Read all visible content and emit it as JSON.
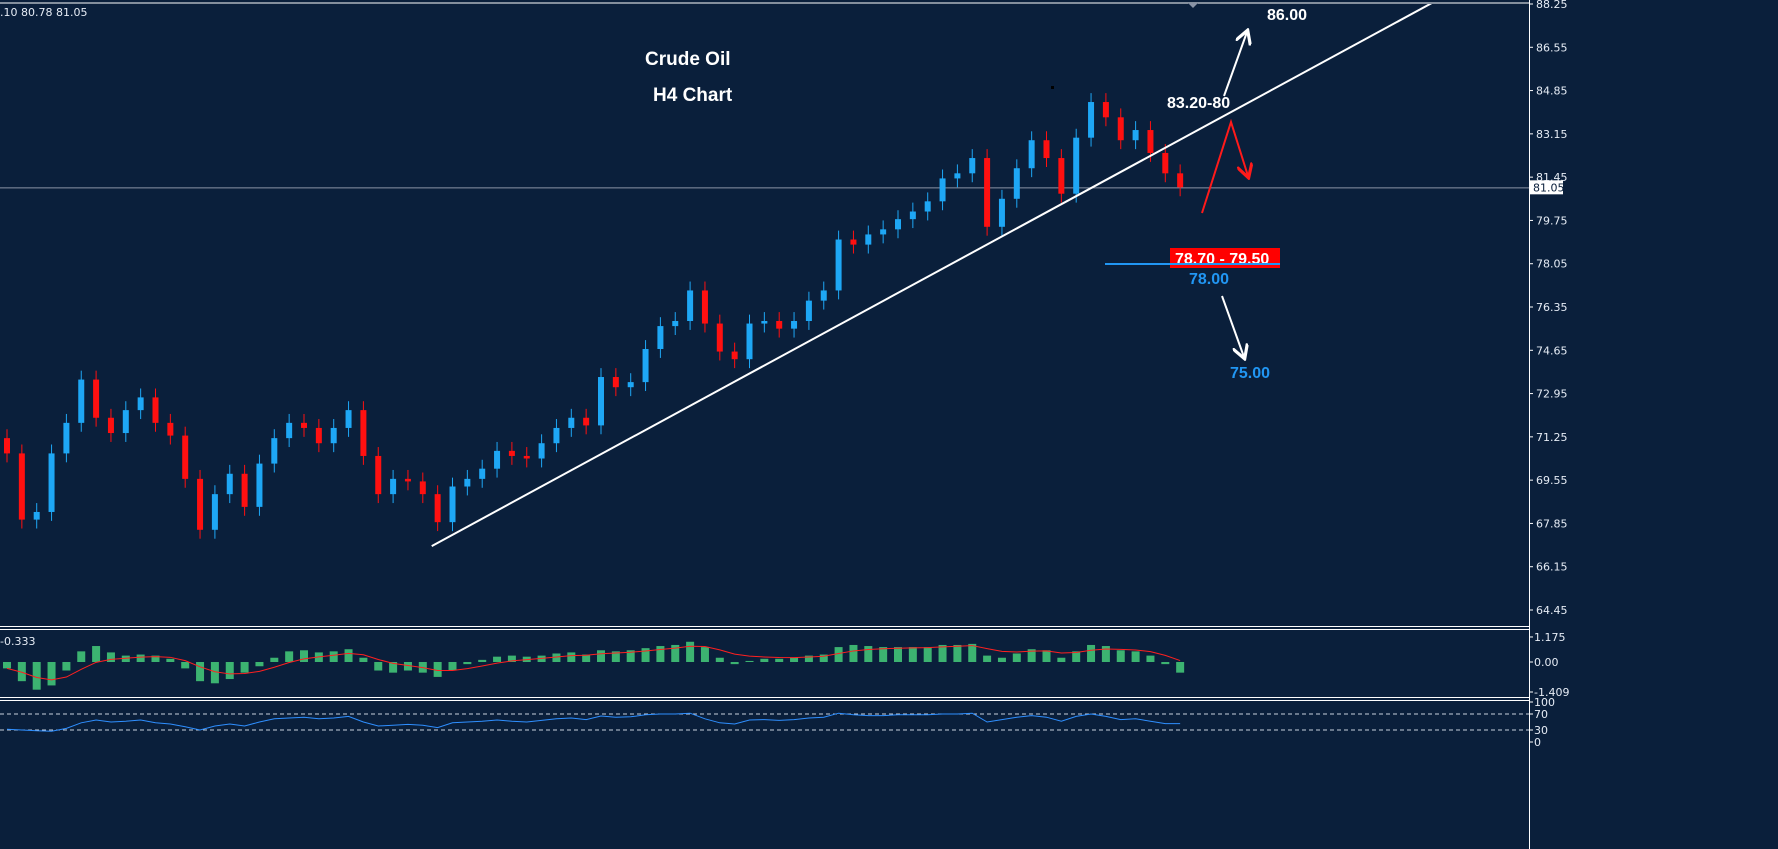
{
  "header": {
    "ohlc_readout": ".10 80.78 81.05"
  },
  "colors": {
    "background": "#0a1f3b",
    "bull": "#1ea7f5",
    "bear": "#ff1010",
    "macd_hist": "#3cb371",
    "macd_signal": "#ff2020",
    "rsi": "#2f8fff",
    "level_blue": "#2196f3",
    "target_red": "#ff0000"
  },
  "chart_data": [
    {
      "type": "candlestick",
      "title": "Crude Oil",
      "subtitle": "H4 Chart",
      "y_ticks": [
        "88.25",
        "86.55",
        "84.85",
        "83.15",
        "81.45",
        "79.75",
        "78.05",
        "76.35",
        "74.65",
        "72.95",
        "71.25",
        "69.55",
        "67.85",
        "66.15",
        "64.45"
      ],
      "ylim": [
        64.45,
        88.25
      ],
      "current_price": "81.05",
      "close": [
        70.6,
        68.0,
        68.3,
        70.6,
        71.8,
        73.5,
        72.0,
        71.4,
        72.3,
        72.8,
        71.8,
        71.3,
        69.6,
        67.6,
        69.0,
        69.8,
        68.5,
        70.2,
        71.2,
        71.8,
        71.6,
        71.0,
        71.6,
        72.3,
        70.5,
        69.0,
        69.6,
        69.5,
        69.0,
        67.9,
        69.3,
        69.6,
        70.0,
        70.7,
        70.5,
        70.4,
        71.0,
        71.6,
        72.0,
        71.7,
        73.6,
        73.2,
        73.4,
        74.7,
        75.6,
        75.8,
        77.0,
        75.7,
        74.6,
        74.3,
        75.7,
        75.8,
        75.5,
        75.8,
        76.6,
        77.0,
        79.0,
        78.8,
        79.2,
        79.4,
        79.8,
        80.1,
        80.5,
        81.4,
        81.6,
        82.2,
        79.5,
        80.6,
        81.8,
        82.9,
        82.2,
        80.8,
        83.0,
        84.4,
        83.8,
        82.9,
        83.3,
        82.4,
        81.6,
        81.05
      ],
      "first_open": 71.2,
      "annotations": {
        "target_up": "86.00",
        "resistance": "83.20-80",
        "pullback_zone": "78.70 - 79.50",
        "support": "78.00",
        "target_down": "75.00"
      },
      "trendline": {
        "from": {
          "index": 28.6,
          "price": 66.96
        },
        "to": {
          "index": 96.3,
          "price": 88.4
        }
      }
    },
    {
      "type": "bar",
      "indicator": "MACD",
      "readout": "-0.333",
      "y_ticks": [
        "1.175",
        "0.00",
        "-1.409"
      ],
      "ylim": [
        -1.409,
        1.175
      ],
      "histogram": [
        -0.3,
        -0.9,
        -1.3,
        -1.1,
        -0.4,
        0.5,
        0.75,
        0.45,
        0.3,
        0.35,
        0.3,
        0.15,
        -0.3,
        -0.9,
        -1.0,
        -0.8,
        -0.5,
        -0.2,
        0.2,
        0.5,
        0.55,
        0.45,
        0.5,
        0.6,
        0.2,
        -0.4,
        -0.5,
        -0.4,
        -0.5,
        -0.7,
        -0.4,
        -0.1,
        0.1,
        0.25,
        0.3,
        0.25,
        0.3,
        0.4,
        0.45,
        0.35,
        0.55,
        0.5,
        0.55,
        0.65,
        0.75,
        0.8,
        0.95,
        0.7,
        0.2,
        -0.1,
        0.05,
        0.15,
        0.15,
        0.2,
        0.3,
        0.35,
        0.7,
        0.8,
        0.75,
        0.7,
        0.7,
        0.7,
        0.7,
        0.8,
        0.8,
        0.85,
        0.3,
        0.2,
        0.4,
        0.6,
        0.55,
        0.2,
        0.5,
        0.8,
        0.75,
        0.55,
        0.5,
        0.3,
        -0.1,
        -0.5
      ]
    },
    {
      "type": "line",
      "indicator": "RSI",
      "y_ticks": [
        "100",
        "70",
        "30",
        "0"
      ],
      "levels": [
        70,
        30
      ],
      "ylim": [
        0,
        100
      ],
      "values": [
        32,
        30,
        28,
        27,
        34,
        48,
        55,
        50,
        52,
        55,
        48,
        45,
        38,
        30,
        40,
        45,
        40,
        50,
        58,
        60,
        62,
        58,
        60,
        64,
        50,
        40,
        42,
        44,
        42,
        36,
        48,
        50,
        52,
        55,
        52,
        50,
        54,
        58,
        60,
        56,
        65,
        62,
        63,
        68,
        70,
        70,
        72,
        58,
        48,
        45,
        55,
        56,
        54,
        56,
        60,
        62,
        72,
        68,
        66,
        66,
        68,
        68,
        68,
        70,
        70,
        72,
        50,
        56,
        62,
        66,
        62,
        52,
        64,
        70,
        64,
        56,
        58,
        52,
        46,
        46
      ]
    }
  ]
}
